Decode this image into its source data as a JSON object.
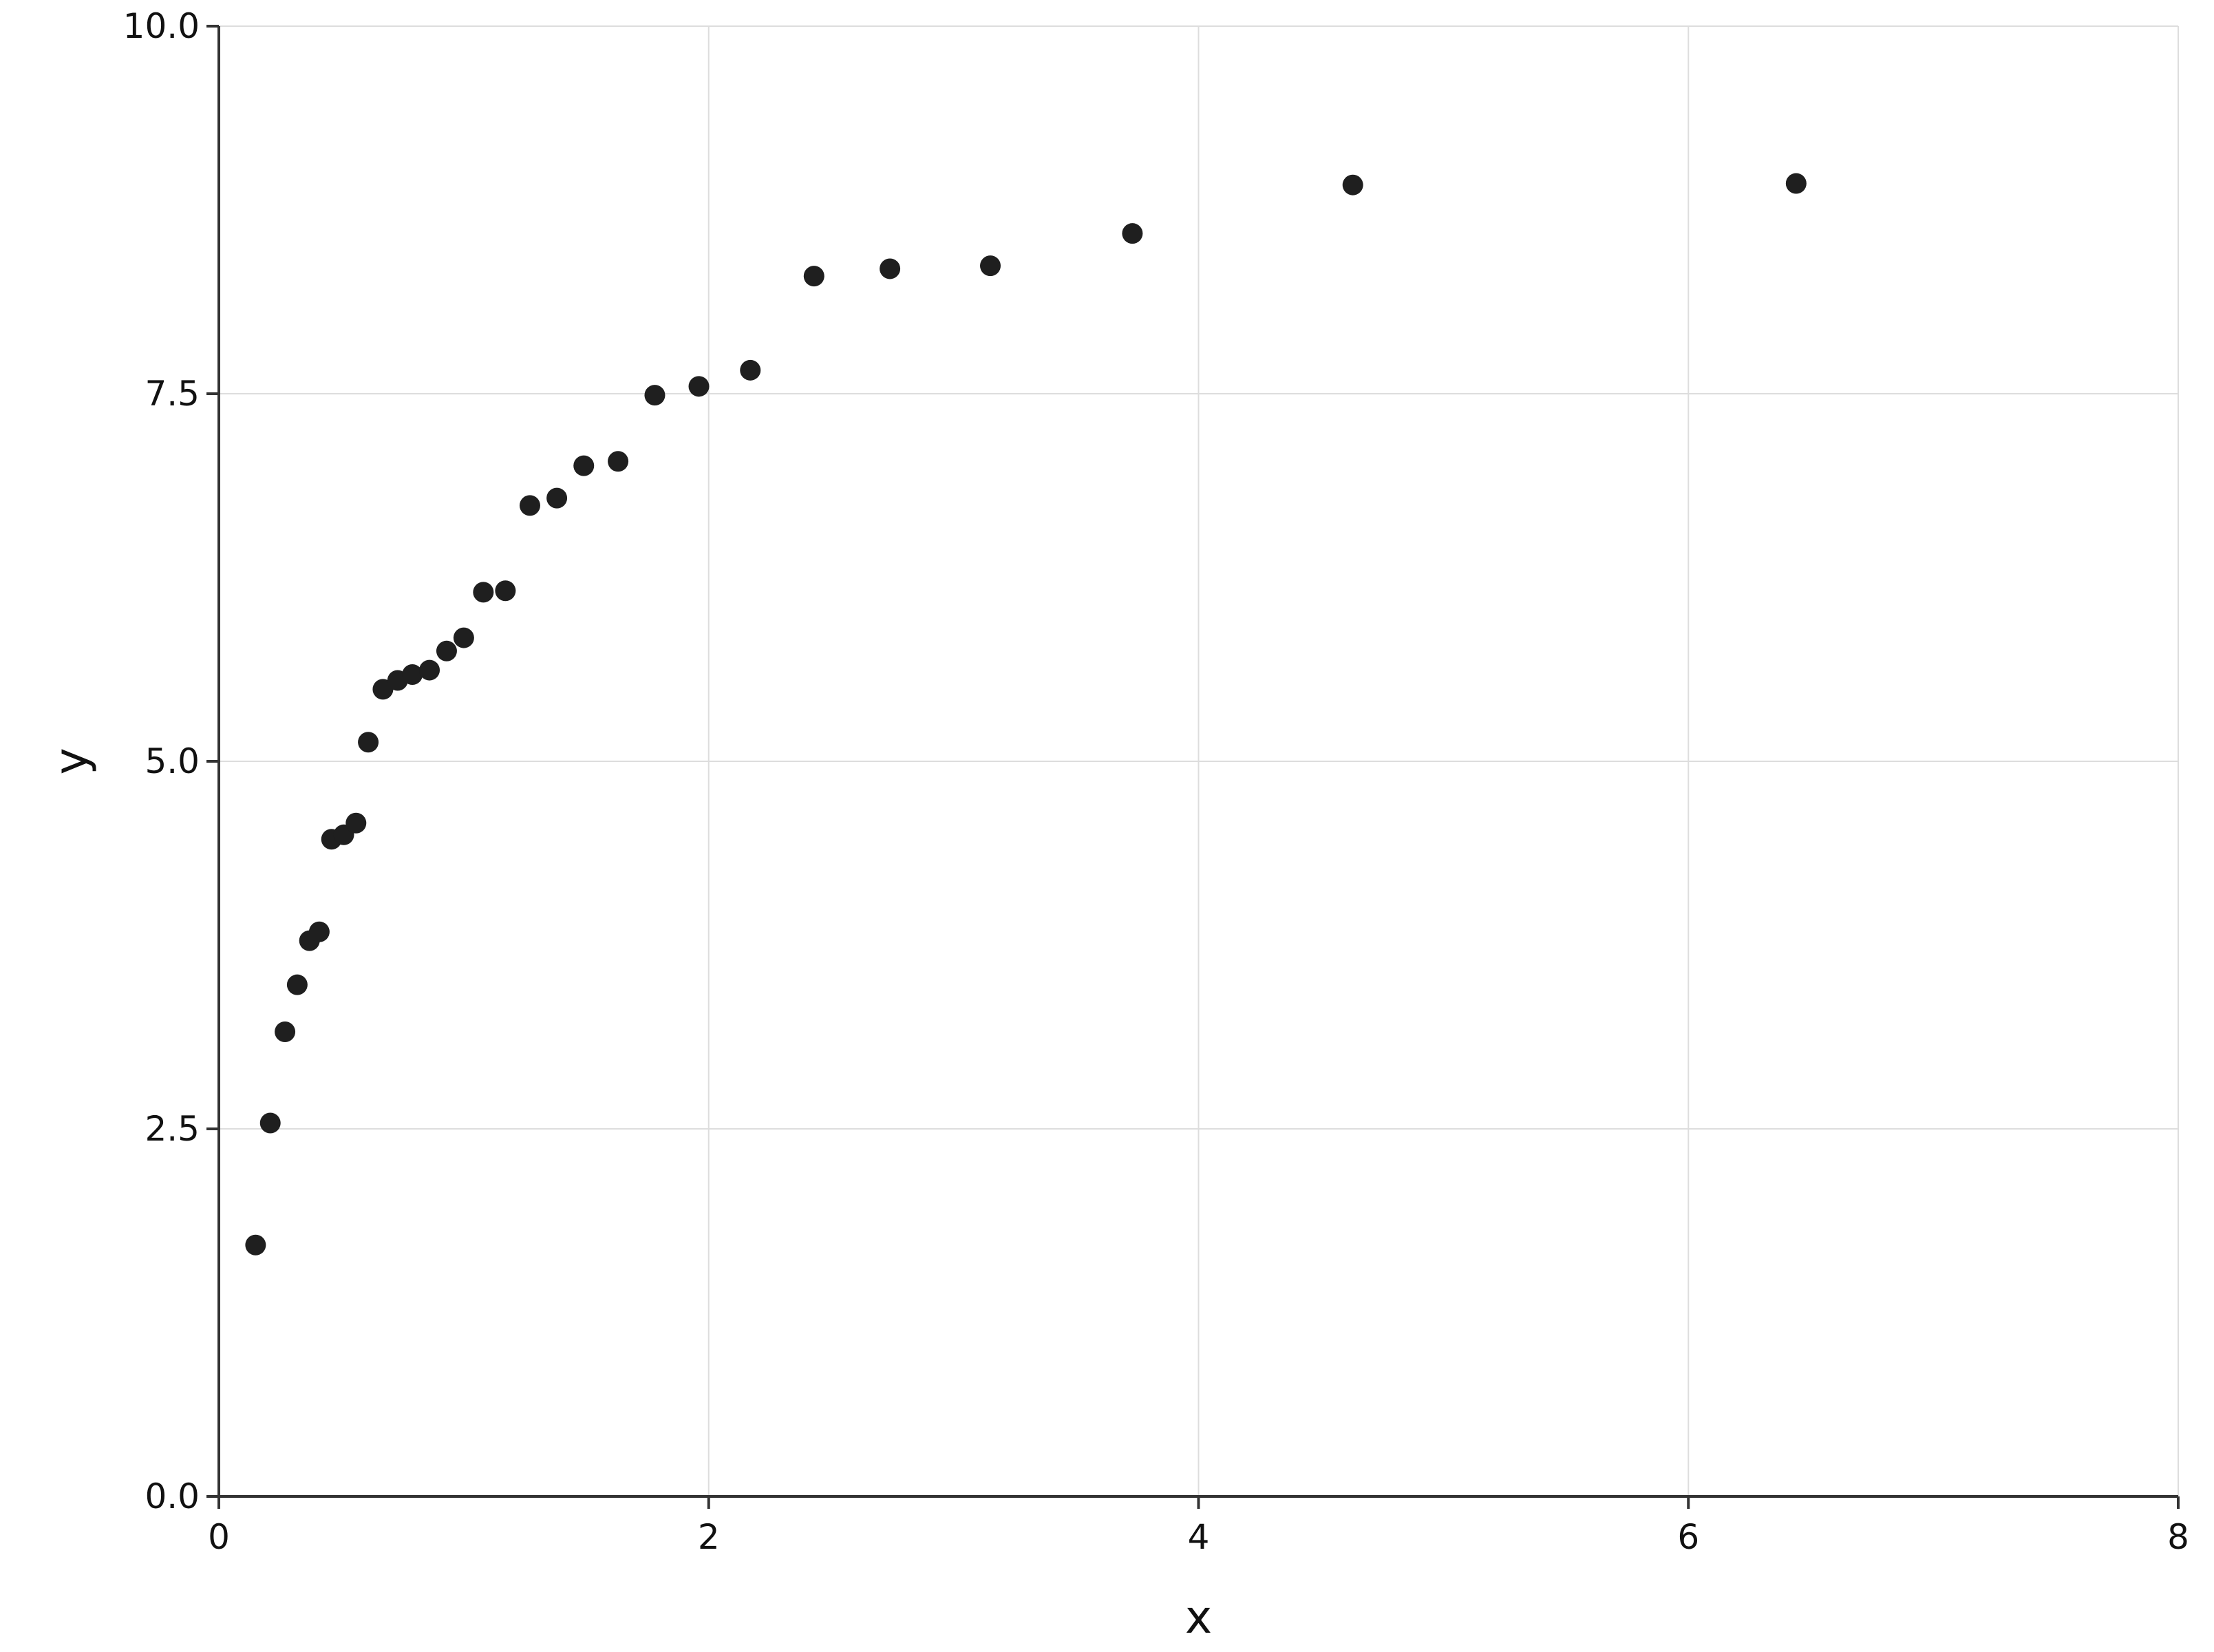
{
  "chart_data": {
    "type": "scatter",
    "title": "",
    "xlabel": "x",
    "ylabel": "y",
    "xlim": [
      0,
      8
    ],
    "ylim": [
      0,
      10
    ],
    "x_ticks": [
      0,
      2,
      4,
      6,
      8
    ],
    "y_ticks": [
      0,
      2.5,
      5,
      7.5,
      10
    ],
    "x_tick_labels": [
      "0",
      "2",
      "4",
      "6",
      "8"
    ],
    "y_tick_labels": [
      "0.0",
      "2.5",
      "5.0",
      "7.5",
      "10.0"
    ],
    "grid": true,
    "legend": "none",
    "series": [
      {
        "name": "",
        "color": "#1f1f1f",
        "points": [
          {
            "x": 0.15,
            "y": 1.71
          },
          {
            "x": 0.21,
            "y": 2.54
          },
          {
            "x": 0.27,
            "y": 3.16
          },
          {
            "x": 0.32,
            "y": 3.48
          },
          {
            "x": 0.37,
            "y": 3.78
          },
          {
            "x": 0.41,
            "y": 3.84
          },
          {
            "x": 0.46,
            "y": 4.47
          },
          {
            "x": 0.51,
            "y": 4.5
          },
          {
            "x": 0.56,
            "y": 4.58
          },
          {
            "x": 0.61,
            "y": 5.13
          },
          {
            "x": 0.67,
            "y": 5.49
          },
          {
            "x": 0.73,
            "y": 5.55
          },
          {
            "x": 0.79,
            "y": 5.59
          },
          {
            "x": 0.86,
            "y": 5.62
          },
          {
            "x": 0.93,
            "y": 5.75
          },
          {
            "x": 1.0,
            "y": 5.84
          },
          {
            "x": 1.08,
            "y": 6.15
          },
          {
            "x": 1.17,
            "y": 6.16
          },
          {
            "x": 1.27,
            "y": 6.74
          },
          {
            "x": 1.38,
            "y": 6.79
          },
          {
            "x": 1.49,
            "y": 7.01
          },
          {
            "x": 1.63,
            "y": 7.04
          },
          {
            "x": 1.78,
            "y": 7.49
          },
          {
            "x": 1.96,
            "y": 7.55
          },
          {
            "x": 2.17,
            "y": 7.66
          },
          {
            "x": 2.43,
            "y": 8.3
          },
          {
            "x": 2.74,
            "y": 8.35
          },
          {
            "x": 3.15,
            "y": 8.37
          },
          {
            "x": 3.73,
            "y": 8.59
          },
          {
            "x": 4.63,
            "y": 8.92
          },
          {
            "x": 6.44,
            "y": 8.93
          }
        ]
      }
    ]
  }
}
